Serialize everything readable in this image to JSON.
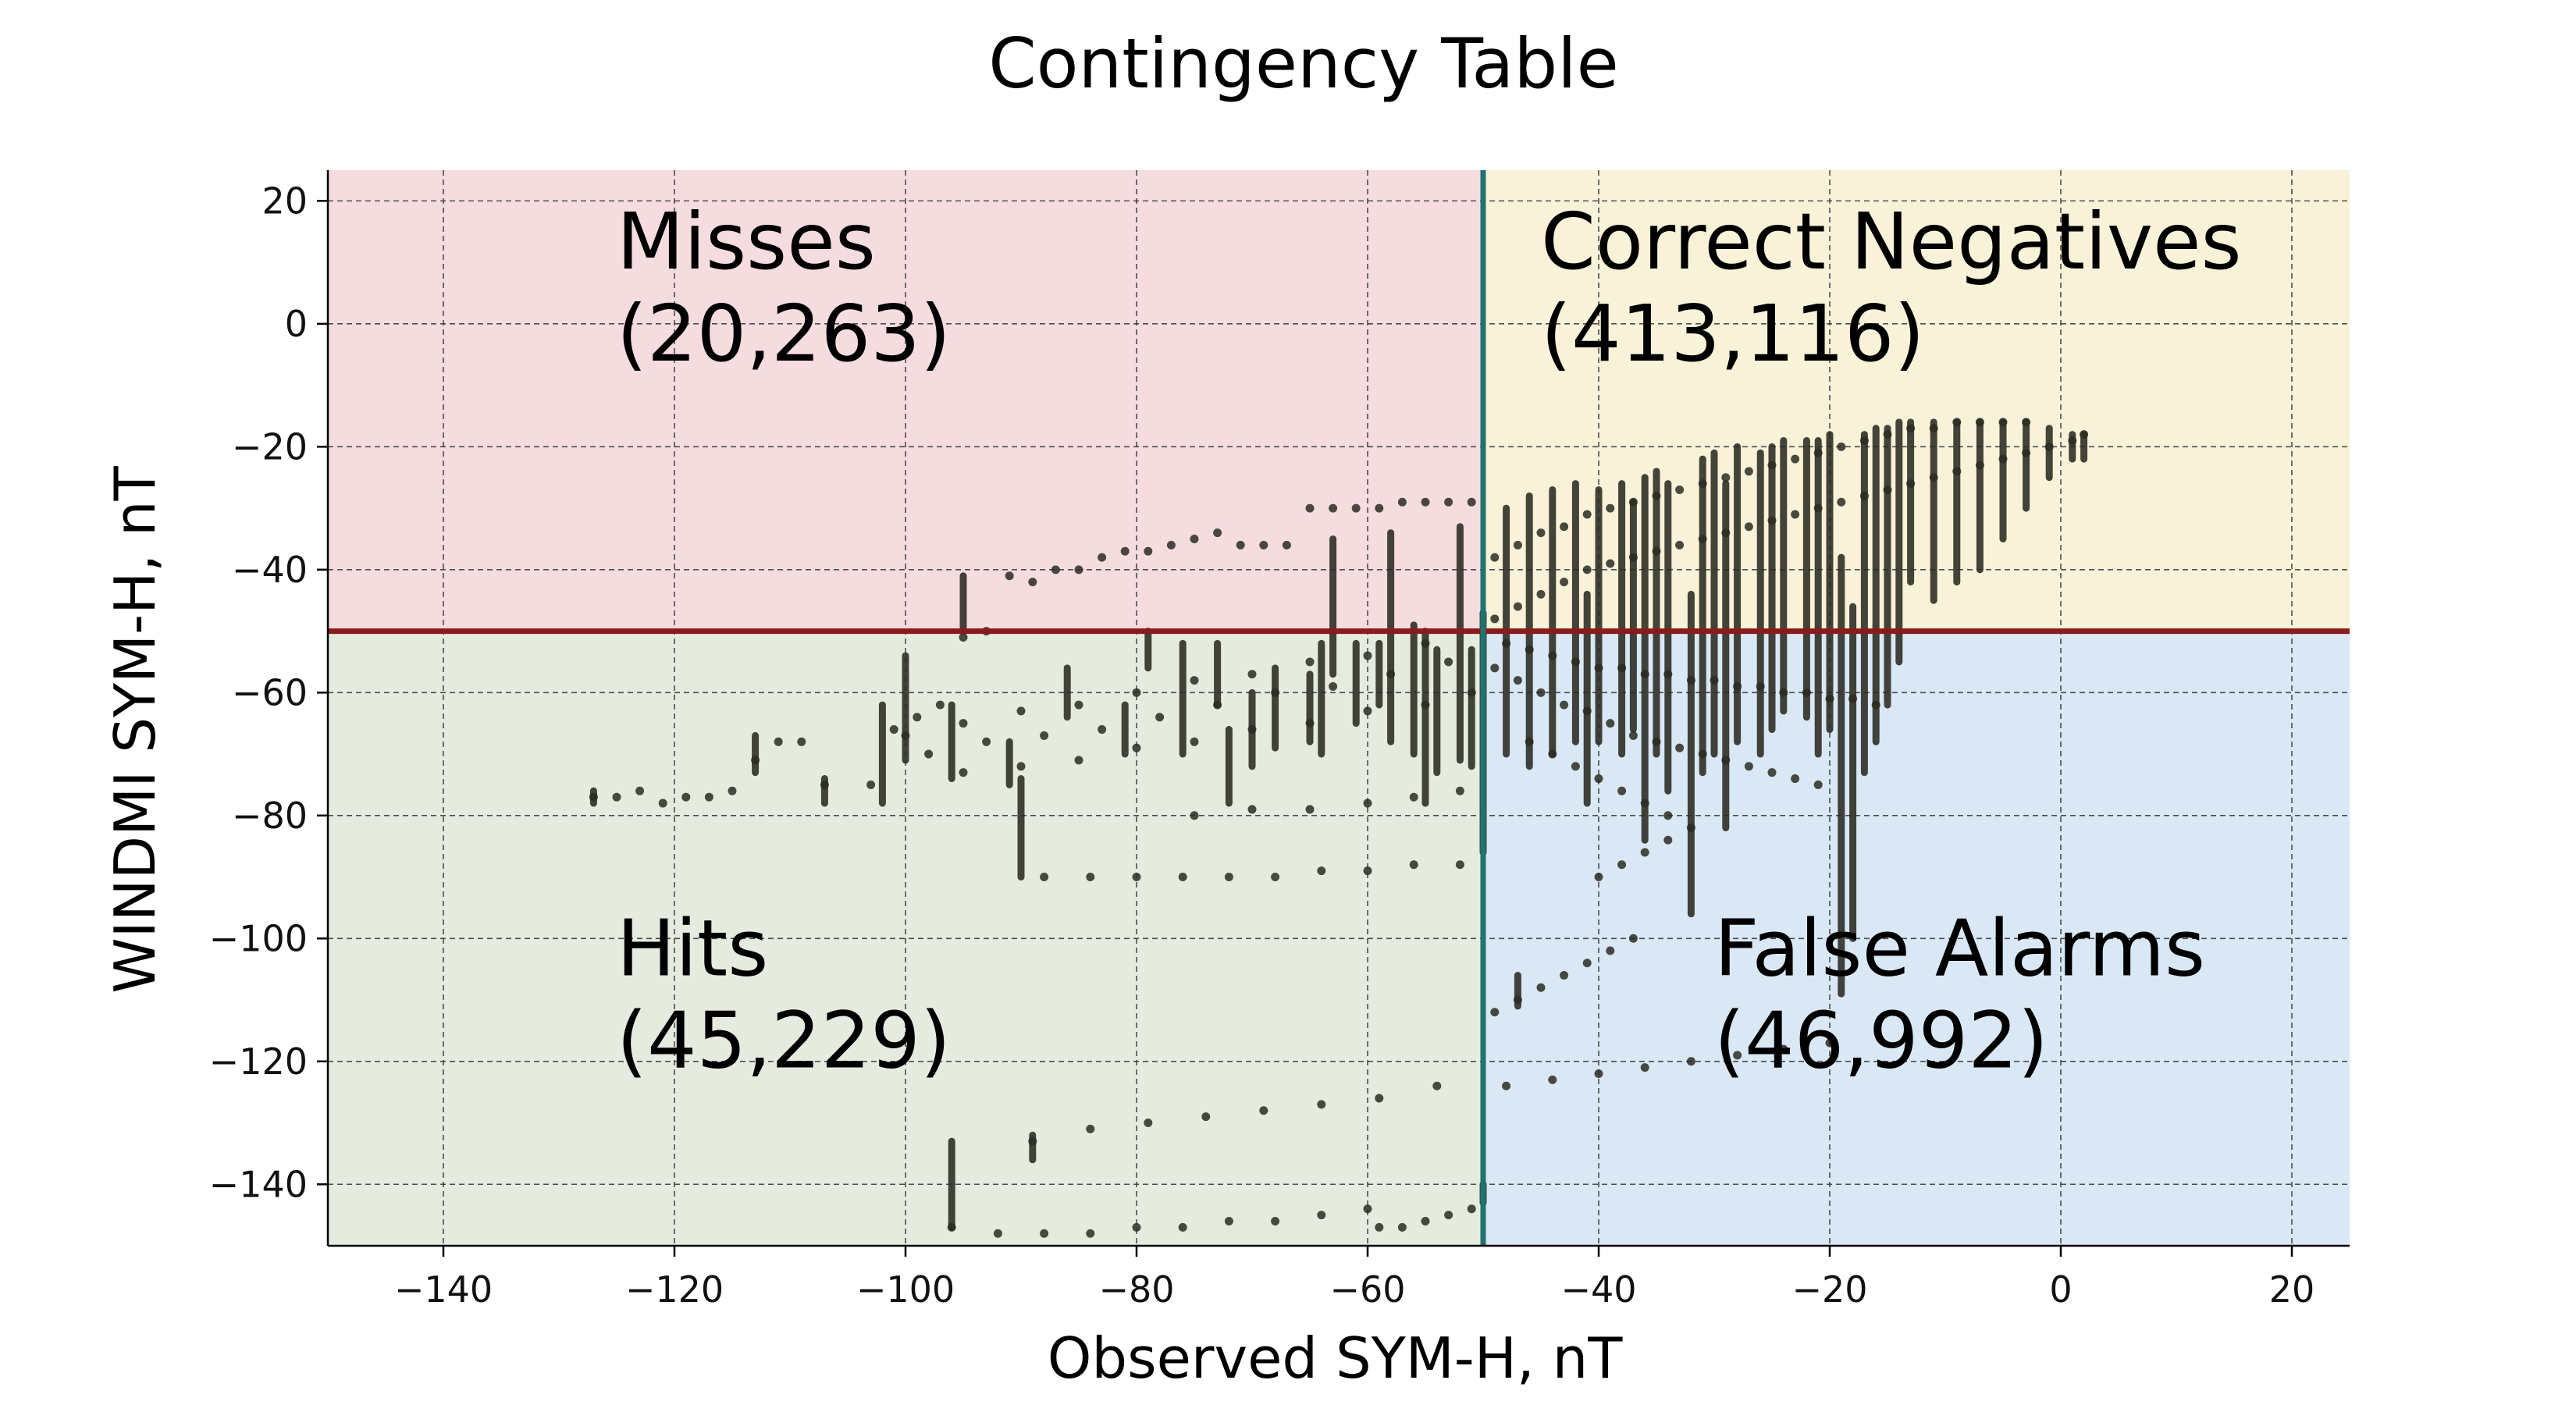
{
  "chart_data": {
    "type": "scatter",
    "title": "Contingency Table",
    "xlabel": "Observed SYM-H, nT",
    "ylabel": "WINDMI SYM-H, nT",
    "xlim": [
      -150,
      25
    ],
    "ylim": [
      -150,
      25
    ],
    "xticks": [
      -140,
      -120,
      -100,
      -80,
      -60,
      -40,
      -20,
      0,
      20
    ],
    "yticks": [
      20,
      0,
      -20,
      -40,
      -60,
      -80,
      -100,
      -120,
      -140
    ],
    "xtick_labels": [
      "−140",
      "−120",
      "−100",
      "−80",
      "−60",
      "−40",
      "−20",
      "0",
      "20"
    ],
    "ytick_labels": [
      "20",
      "0",
      "−20",
      "−40",
      "−60",
      "−80",
      "−100",
      "−120",
      "−140"
    ],
    "grid": true,
    "threshold": {
      "observed": -50,
      "windmi": -50
    },
    "quadrants": [
      {
        "name": "Misses",
        "count": "(20,263)",
        "color": "#f5dcdf",
        "region": "top-left"
      },
      {
        "name": "Correct Negatives",
        "count": "(413,116)",
        "color": "#f8f2d9",
        "region": "top-right"
      },
      {
        "name": "Hits",
        "count": "(45,229)",
        "color": "#e5ecdf",
        "region": "bottom-left"
      },
      {
        "name": "False Alarms",
        "count": "(46,992)",
        "color": "#d9e8f4",
        "region": "bottom-right"
      }
    ],
    "threshold_colors": {
      "horizontal": "#8b1a1a",
      "vertical": "#1f7370"
    },
    "point_color": "#2b2b22",
    "series": [
      {
        "points": [
          [
            -127,
            -77
          ],
          [
            -125,
            -77
          ],
          [
            -123,
            -76
          ],
          [
            -121,
            -78
          ],
          [
            -119,
            -77
          ],
          [
            -117,
            -77
          ],
          [
            -115,
            -76
          ],
          [
            -113,
            -71
          ],
          [
            -111,
            -68
          ],
          [
            -109,
            -68
          ],
          [
            -107,
            -75
          ],
          [
            -103,
            -75
          ],
          [
            -101,
            -66
          ],
          [
            -99,
            -64
          ],
          [
            -97,
            -62
          ],
          [
            -95,
            -51
          ],
          [
            -93,
            -50
          ],
          [
            -91,
            -41
          ],
          [
            -89,
            -42
          ],
          [
            -87,
            -40
          ],
          [
            -85,
            -40
          ],
          [
            -83,
            -38
          ],
          [
            -81,
            -37
          ],
          [
            -79,
            -37
          ],
          [
            -77,
            -36
          ],
          [
            -75,
            -35
          ],
          [
            -73,
            -34
          ],
          [
            -71,
            -36
          ],
          [
            -69,
            -36
          ],
          [
            -67,
            -36
          ],
          [
            -65,
            -30
          ],
          [
            -63,
            -30
          ],
          [
            -61,
            -30
          ],
          [
            -59,
            -30
          ],
          [
            -57,
            -29
          ],
          [
            -55,
            -29
          ],
          [
            -53,
            -29
          ],
          [
            -51,
            -29
          ],
          [
            -100,
            -67
          ],
          [
            -95,
            -65
          ],
          [
            -90,
            -63
          ],
          [
            -85,
            -62
          ],
          [
            -80,
            -60
          ],
          [
            -75,
            -58
          ],
          [
            -70,
            -57
          ],
          [
            -65,
            -55
          ],
          [
            -60,
            -54
          ],
          [
            -55,
            -52
          ],
          [
            -98,
            -70
          ],
          [
            -93,
            -68
          ],
          [
            -88,
            -67
          ],
          [
            -83,
            -66
          ],
          [
            -78,
            -64
          ],
          [
            -73,
            -62
          ],
          [
            -68,
            -60
          ],
          [
            -63,
            -59
          ],
          [
            -58,
            -57
          ],
          [
            -53,
            -55
          ],
          [
            -95,
            -73
          ],
          [
            -90,
            -72
          ],
          [
            -85,
            -71
          ],
          [
            -80,
            -69
          ],
          [
            -75,
            -68
          ],
          [
            -70,
            -66
          ],
          [
            -65,
            -65
          ],
          [
            -60,
            -63
          ],
          [
            -55,
            -62
          ],
          [
            -51,
            -60
          ],
          [
            -88,
            -90
          ],
          [
            -84,
            -90
          ],
          [
            -80,
            -90
          ],
          [
            -76,
            -90
          ],
          [
            -72,
            -90
          ],
          [
            -68,
            -90
          ],
          [
            -64,
            -89
          ],
          [
            -60,
            -89
          ],
          [
            -56,
            -88
          ],
          [
            -52,
            -88
          ],
          [
            -75,
            -80
          ],
          [
            -70,
            -79
          ],
          [
            -65,
            -79
          ],
          [
            -60,
            -78
          ],
          [
            -56,
            -77
          ],
          [
            -52,
            -76
          ],
          [
            -96,
            -147
          ],
          [
            -92,
            -148
          ],
          [
            -88,
            -148
          ],
          [
            -84,
            -148
          ],
          [
            -80,
            -147
          ],
          [
            -76,
            -147
          ],
          [
            -72,
            -146
          ],
          [
            -68,
            -146
          ],
          [
            -64,
            -145
          ],
          [
            -60,
            -144
          ],
          [
            -89,
            -133
          ],
          [
            -84,
            -131
          ],
          [
            -79,
            -130
          ],
          [
            -74,
            -129
          ],
          [
            -69,
            -128
          ],
          [
            -64,
            -127
          ],
          [
            -59,
            -126
          ],
          [
            -54,
            -124
          ],
          [
            -49,
            -112
          ],
          [
            -47,
            -110
          ],
          [
            -45,
            -108
          ],
          [
            -43,
            -106
          ],
          [
            -41,
            -104
          ],
          [
            -39,
            -102
          ],
          [
            -37,
            -100
          ],
          [
            -48,
            -124
          ],
          [
            -44,
            -123
          ],
          [
            -40,
            -122
          ],
          [
            -36,
            -121
          ],
          [
            -32,
            -120
          ],
          [
            -28,
            -119
          ],
          [
            -24,
            -118
          ],
          [
            -20,
            -117
          ],
          [
            -51,
            -144
          ],
          [
            -53,
            -145
          ],
          [
            -55,
            -146
          ],
          [
            -57,
            -147
          ],
          [
            -59,
            -147
          ],
          [
            -49,
            -56
          ],
          [
            -47,
            -58
          ],
          [
            -45,
            -60
          ],
          [
            -43,
            -62
          ],
          [
            -41,
            -63
          ],
          [
            -39,
            -65
          ],
          [
            -37,
            -67
          ],
          [
            -35,
            -68
          ],
          [
            -33,
            -69
          ],
          [
            -31,
            -70
          ],
          [
            -29,
            -71
          ],
          [
            -27,
            -72
          ],
          [
            -25,
            -73
          ],
          [
            -23,
            -74
          ],
          [
            -21,
            -75
          ],
          [
            -48,
            -52
          ],
          [
            -46,
            -53
          ],
          [
            -44,
            -54
          ],
          [
            -42,
            -55
          ],
          [
            -40,
            -56
          ],
          [
            -38,
            -56
          ],
          [
            -36,
            -57
          ],
          [
            -34,
            -57
          ],
          [
            -32,
            -58
          ],
          [
            -30,
            -58
          ],
          [
            -28,
            -59
          ],
          [
            -26,
            -59
          ],
          [
            -24,
            -60
          ],
          [
            -22,
            -60
          ],
          [
            -20,
            -61
          ],
          [
            -18,
            -61
          ],
          [
            -16,
            -62
          ],
          [
            -49,
            -48
          ],
          [
            -47,
            -46
          ],
          [
            -45,
            -44
          ],
          [
            -43,
            -42
          ],
          [
            -41,
            -40
          ],
          [
            -39,
            -39
          ],
          [
            -37,
            -38
          ],
          [
            -35,
            -37
          ],
          [
            -33,
            -36
          ],
          [
            -31,
            -35
          ],
          [
            -29,
            -34
          ],
          [
            -27,
            -33
          ],
          [
            -25,
            -32
          ],
          [
            -23,
            -31
          ],
          [
            -21,
            -30
          ],
          [
            -19,
            -29
          ],
          [
            -17,
            -28
          ],
          [
            -15,
            -27
          ],
          [
            -13,
            -26
          ],
          [
            -11,
            -25
          ],
          [
            -9,
            -24
          ],
          [
            -7,
            -23
          ],
          [
            -5,
            -22
          ],
          [
            -3,
            -21
          ],
          [
            -1,
            -20
          ],
          [
            1,
            -19
          ],
          [
            2,
            -18
          ],
          [
            -49,
            -38
          ],
          [
            -47,
            -36
          ],
          [
            -45,
            -34
          ],
          [
            -43,
            -33
          ],
          [
            -41,
            -31
          ],
          [
            -39,
            -30
          ],
          [
            -37,
            -29
          ],
          [
            -35,
            -28
          ],
          [
            -33,
            -27
          ],
          [
            -31,
            -26
          ],
          [
            -29,
            -25
          ],
          [
            -27,
            -24
          ],
          [
            -25,
            -23
          ],
          [
            -23,
            -22
          ],
          [
            -21,
            -21
          ],
          [
            -19,
            -20
          ],
          [
            -17,
            -19
          ],
          [
            -15,
            -18
          ],
          [
            -13,
            -17
          ],
          [
            -11,
            -17
          ],
          [
            -9,
            -16
          ],
          [
            -7,
            -16
          ],
          [
            -5,
            -16
          ],
          [
            -3,
            -16
          ],
          [
            -46,
            -68
          ],
          [
            -44,
            -70
          ],
          [
            -42,
            -72
          ],
          [
            -40,
            -74
          ],
          [
            -38,
            -76
          ],
          [
            -36,
            -78
          ],
          [
            -34,
            -80
          ],
          [
            -32,
            -82
          ],
          [
            -40,
            -90
          ],
          [
            -38,
            -88
          ],
          [
            -36,
            -86
          ],
          [
            -34,
            -84
          ]
        ],
        "vertical_runs": [
          [
            -127,
            -78,
            -76
          ],
          [
            -113,
            -73,
            -67
          ],
          [
            -107,
            -78,
            -74
          ],
          [
            -102,
            -78,
            -62
          ],
          [
            -100,
            -71,
            -54
          ],
          [
            -96,
            -74,
            -62
          ],
          [
            -95,
            -50,
            -41
          ],
          [
            -91,
            -75,
            -68
          ],
          [
            -90,
            -90,
            -74
          ],
          [
            -86,
            -64,
            -56
          ],
          [
            -81,
            -70,
            -62
          ],
          [
            -79,
            -56,
            -50
          ],
          [
            -76,
            -70,
            -52
          ],
          [
            -73,
            -62,
            -52
          ],
          [
            -72,
            -78,
            -66
          ],
          [
            -70,
            -72,
            -60
          ],
          [
            -68,
            -69,
            -56
          ],
          [
            -65,
            -68,
            -57
          ],
          [
            -64,
            -70,
            -52
          ],
          [
            -63,
            -57,
            -35
          ],
          [
            -61,
            -65,
            -52
          ],
          [
            -59,
            -62,
            -52
          ],
          [
            -58,
            -68,
            -34
          ],
          [
            -56,
            -70,
            -49
          ],
          [
            -55,
            -78,
            -50
          ],
          [
            -54,
            -73,
            -53
          ],
          [
            -52,
            -71,
            -33
          ],
          [
            -51,
            -72,
            -53
          ],
          [
            -50,
            -86,
            -47
          ],
          [
            -48,
            -70,
            -30
          ],
          [
            -46,
            -72,
            -28
          ],
          [
            -44,
            -70,
            -27
          ],
          [
            -42,
            -68,
            -26
          ],
          [
            -41,
            -78,
            -44
          ],
          [
            -40,
            -68,
            -27
          ],
          [
            -38,
            -70,
            -26
          ],
          [
            -37,
            -66,
            -29
          ],
          [
            -36,
            -84,
            -25
          ],
          [
            -35,
            -70,
            -24
          ],
          [
            -34,
            -76,
            -26
          ],
          [
            -32,
            -96,
            -44
          ],
          [
            -31,
            -73,
            -22
          ],
          [
            -30,
            -70,
            -21
          ],
          [
            -29,
            -82,
            -26
          ],
          [
            -28,
            -68,
            -20
          ],
          [
            -26,
            -70,
            -21
          ],
          [
            -25,
            -66,
            -20
          ],
          [
            -24,
            -63,
            -19
          ],
          [
            -22,
            -64,
            -19
          ],
          [
            -21,
            -70,
            -19
          ],
          [
            -20,
            -66,
            -18
          ],
          [
            -19,
            -109,
            -38
          ],
          [
            -18,
            -100,
            -46
          ],
          [
            -17,
            -73,
            -18
          ],
          [
            -16,
            -68,
            -17
          ],
          [
            -15,
            -62,
            -17
          ],
          [
            -14,
            -55,
            -16
          ],
          [
            -13,
            -42,
            -16
          ],
          [
            -11,
            -45,
            -16
          ],
          [
            -9,
            -42,
            -16
          ],
          [
            -7,
            -40,
            -16
          ],
          [
            -5,
            -35,
            -16
          ],
          [
            -3,
            -30,
            -16
          ],
          [
            -1,
            -25,
            -17
          ],
          [
            1,
            -22,
            -18
          ],
          [
            2,
            -22,
            -18
          ],
          [
            -96,
            -147,
            -133
          ],
          [
            -89,
            -136,
            -132
          ],
          [
            -50,
            -143,
            -140
          ],
          [
            -47,
            -111,
            -106
          ]
        ]
      }
    ]
  }
}
